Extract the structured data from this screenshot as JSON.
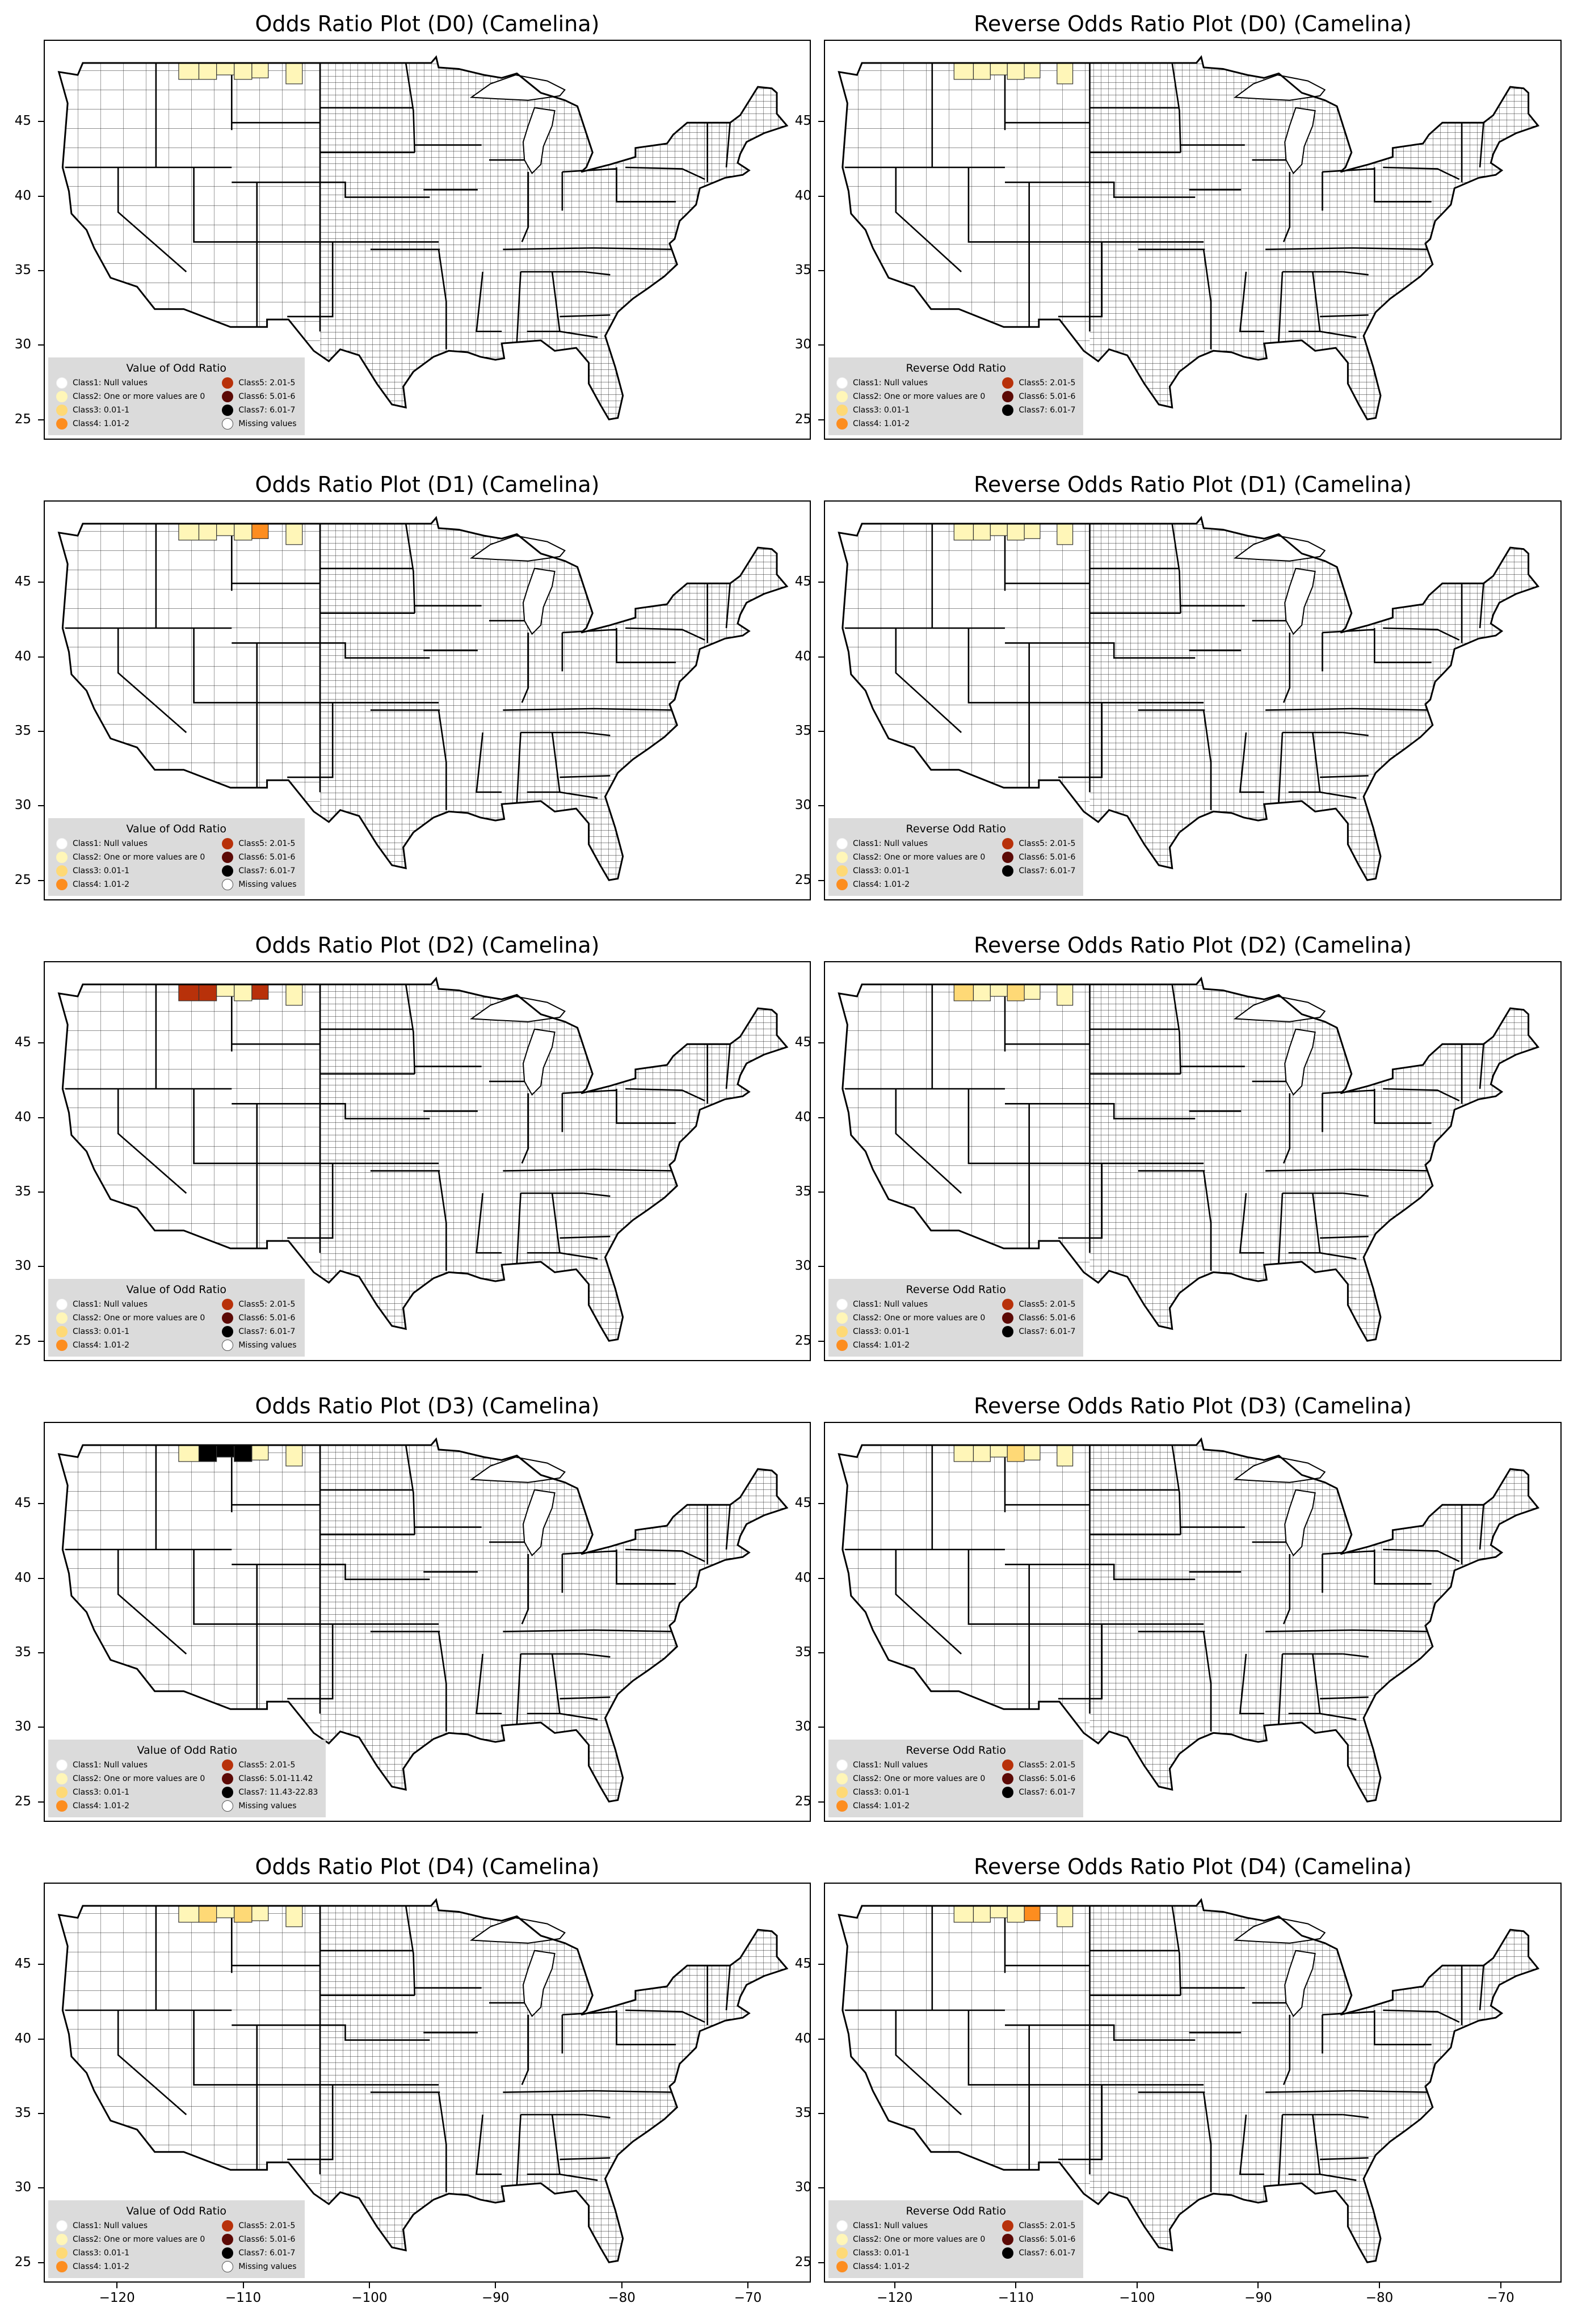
{
  "figure": {
    "x_ticks": [
      "−120",
      "−110",
      "−100",
      "−90",
      "−80",
      "−70"
    ],
    "y_ticks": [
      "45",
      "40",
      "35",
      "30",
      "25"
    ]
  },
  "colors": {
    "class1": "#ffffff",
    "class2": "#fff6b8",
    "class3": "#fed976",
    "class4": "#fd8d1f",
    "class5": "#b8310a",
    "class6": "#5c0a06",
    "class7": "#000000",
    "missing": "#c8c8c8"
  },
  "panels": [
    {
      "title": "Odds Ratio Plot (D0) (Camelina)",
      "legend_title": "Value of Odd Ratio",
      "legend_left": [
        "Class1: Null values",
        "Class2: One or more values are 0",
        "Class3: 0.01-1",
        "Class4: 1.01-2"
      ],
      "legend_right": [
        "Class5: 2.01-5",
        "Class6: 5.01-6",
        "Class7: 6.01-7",
        "Missing values"
      ],
      "counties": [
        "class2",
        "class2",
        "class2",
        "class2",
        "class2",
        "class2"
      ]
    },
    {
      "title": "Reverse Odds Ratio Plot (D0) (Camelina)",
      "legend_title": "Reverse Odd Ratio",
      "legend_left": [
        "Class1: Null values",
        "Class2: One or more values are 0",
        "Class3: 0.01-1",
        "Class4: 1.01-2"
      ],
      "legend_right": [
        "Class5: 2.01-5",
        "Class6: 5.01-6",
        "Class7: 6.01-7"
      ],
      "counties": [
        "class2",
        "class2",
        "class2",
        "class2",
        "class2",
        "class2"
      ]
    },
    {
      "title": "Odds Ratio Plot (D1) (Camelina)",
      "legend_title": "Value of Odd Ratio",
      "legend_left": [
        "Class1: Null values",
        "Class2: One or more values are 0",
        "Class3: 0.01-1",
        "Class4: 1.01-2"
      ],
      "legend_right": [
        "Class5: 2.01-5",
        "Class6: 5.01-6",
        "Class7: 6.01-7",
        "Missing values"
      ],
      "counties": [
        "class2",
        "class2",
        "class2",
        "class2",
        "class4",
        "class2"
      ]
    },
    {
      "title": "Reverse Odds Ratio Plot (D1) (Camelina)",
      "legend_title": "Reverse Odd Ratio",
      "legend_left": [
        "Class1: Null values",
        "Class2: One or more values are 0",
        "Class3: 0.01-1",
        "Class4: 1.01-2"
      ],
      "legend_right": [
        "Class5: 2.01-5",
        "Class6: 5.01-6",
        "Class7: 6.01-7"
      ],
      "counties": [
        "class2",
        "class2",
        "class2",
        "class2",
        "class2",
        "class2"
      ]
    },
    {
      "title": "Odds Ratio Plot (D2) (Camelina)",
      "legend_title": "Value of Odd Ratio",
      "legend_left": [
        "Class1: Null values",
        "Class2: One or more values are 0",
        "Class3: 0.01-1",
        "Class4: 1.01-2"
      ],
      "legend_right": [
        "Class5: 2.01-5",
        "Class6: 5.01-6",
        "Class7: 6.01-7",
        "Missing values"
      ],
      "counties": [
        "class5",
        "class5",
        "class2",
        "class2",
        "class5",
        "class2"
      ]
    },
    {
      "title": "Reverse Odds Ratio Plot (D2) (Camelina)",
      "legend_title": "Reverse Odd Ratio",
      "legend_left": [
        "Class1: Null values",
        "Class2: One or more values are 0",
        "Class3: 0.01-1",
        "Class4: 1.01-2"
      ],
      "legend_right": [
        "Class5: 2.01-5",
        "Class6: 5.01-6",
        "Class7: 6.01-7"
      ],
      "counties": [
        "class3",
        "class2",
        "class2",
        "class3",
        "class2",
        "class2"
      ]
    },
    {
      "title": "Odds Ratio Plot (D3) (Camelina)",
      "legend_title": "Value of Odd Ratio",
      "legend_left": [
        "Class1: Null values",
        "Class2: One or more values are 0",
        "Class3: 0.01-1",
        "Class4: 1.01-2"
      ],
      "legend_right": [
        "Class5: 2.01-5",
        "Class6: 5.01-11.42",
        "Class7: 11.43-22.83",
        "Missing values"
      ],
      "counties": [
        "class2",
        "class7",
        "class7",
        "class7",
        "class2",
        "class2"
      ]
    },
    {
      "title": "Reverse Odds Ratio Plot (D3) (Camelina)",
      "legend_title": "Reverse Odd Ratio",
      "legend_left": [
        "Class1: Null values",
        "Class2: One or more values are 0",
        "Class3: 0.01-1",
        "Class4: 1.01-2"
      ],
      "legend_right": [
        "Class5: 2.01-5",
        "Class6: 5.01-6",
        "Class7: 6.01-7"
      ],
      "counties": [
        "class2",
        "class2",
        "class2",
        "class3",
        "class2",
        "class2"
      ]
    },
    {
      "title": "Odds Ratio Plot (D4) (Camelina)",
      "legend_title": "Value of Odd Ratio",
      "legend_left": [
        "Class1: Null values",
        "Class2: One or more values are 0",
        "Class3: 0.01-1",
        "Class4: 1.01-2"
      ],
      "legend_right": [
        "Class5: 2.01-5",
        "Class6: 5.01-6",
        "Class7: 6.01-7",
        "Missing values"
      ],
      "counties": [
        "class2",
        "class3",
        "class2",
        "class3",
        "class2",
        "class2"
      ]
    },
    {
      "title": "Reverse Odds Ratio Plot (D4) (Camelina)",
      "legend_title": "Reverse Odd Ratio",
      "legend_left": [
        "Class1: Null values",
        "Class2: One or more values are 0",
        "Class3: 0.01-1",
        "Class4: 1.01-2"
      ],
      "legend_right": [
        "Class5: 2.01-5",
        "Class6: 5.01-6",
        "Class7: 6.01-7"
      ],
      "counties": [
        "class2",
        "class2",
        "class2",
        "class2",
        "class4",
        "class2"
      ]
    }
  ]
}
